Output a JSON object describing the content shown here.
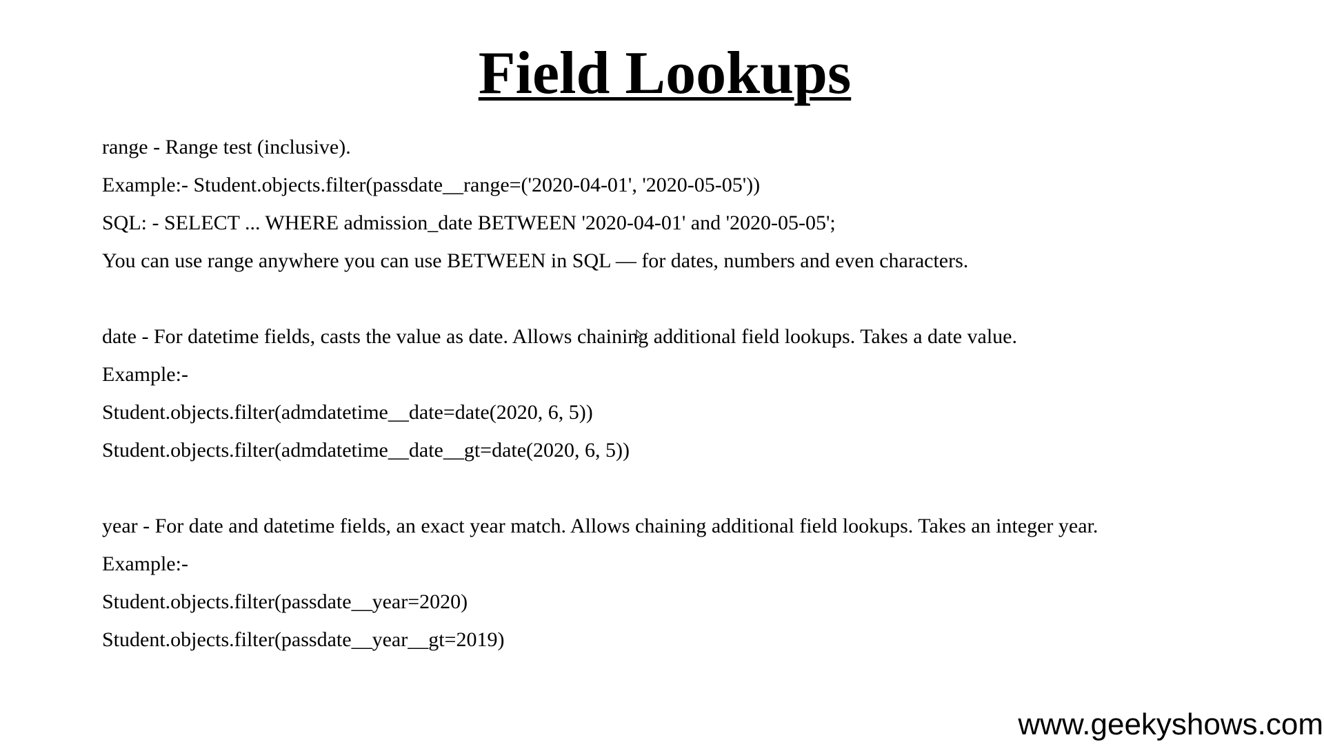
{
  "page": {
    "title": "Field Lookups",
    "watermark": "www.geekyshows.com"
  },
  "sections": {
    "range": {
      "lines": [
        "range - Range test (inclusive).",
        "Example:- Student.objects.filter(passdate__range=('2020-04-01', '2020-05-05'))",
        "SQL: - SELECT ... WHERE admission_date BETWEEN '2020-04-01' and '2020-05-05';",
        "You can use range anywhere you can use BETWEEN in SQL — for dates, numbers and even characters."
      ]
    },
    "date": {
      "lines": [
        "date - For datetime fields, casts the value as date. Allows chaining additional field lookups. Takes a date value.",
        "Example:-",
        "Student.objects.filter(admdatetime__date=date(2020, 6, 5))",
        "Student.objects.filter(admdatetime__date__gt=date(2020, 6, 5))"
      ]
    },
    "year": {
      "lines": [
        "year - For date and datetime fields, an exact year match. Allows chaining additional field lookups. Takes an integer year.",
        "Example:-",
        "Student.objects.filter(passdate__year=2020)",
        "Student.objects.filter(passdate__year__gt=2019)"
      ]
    }
  }
}
